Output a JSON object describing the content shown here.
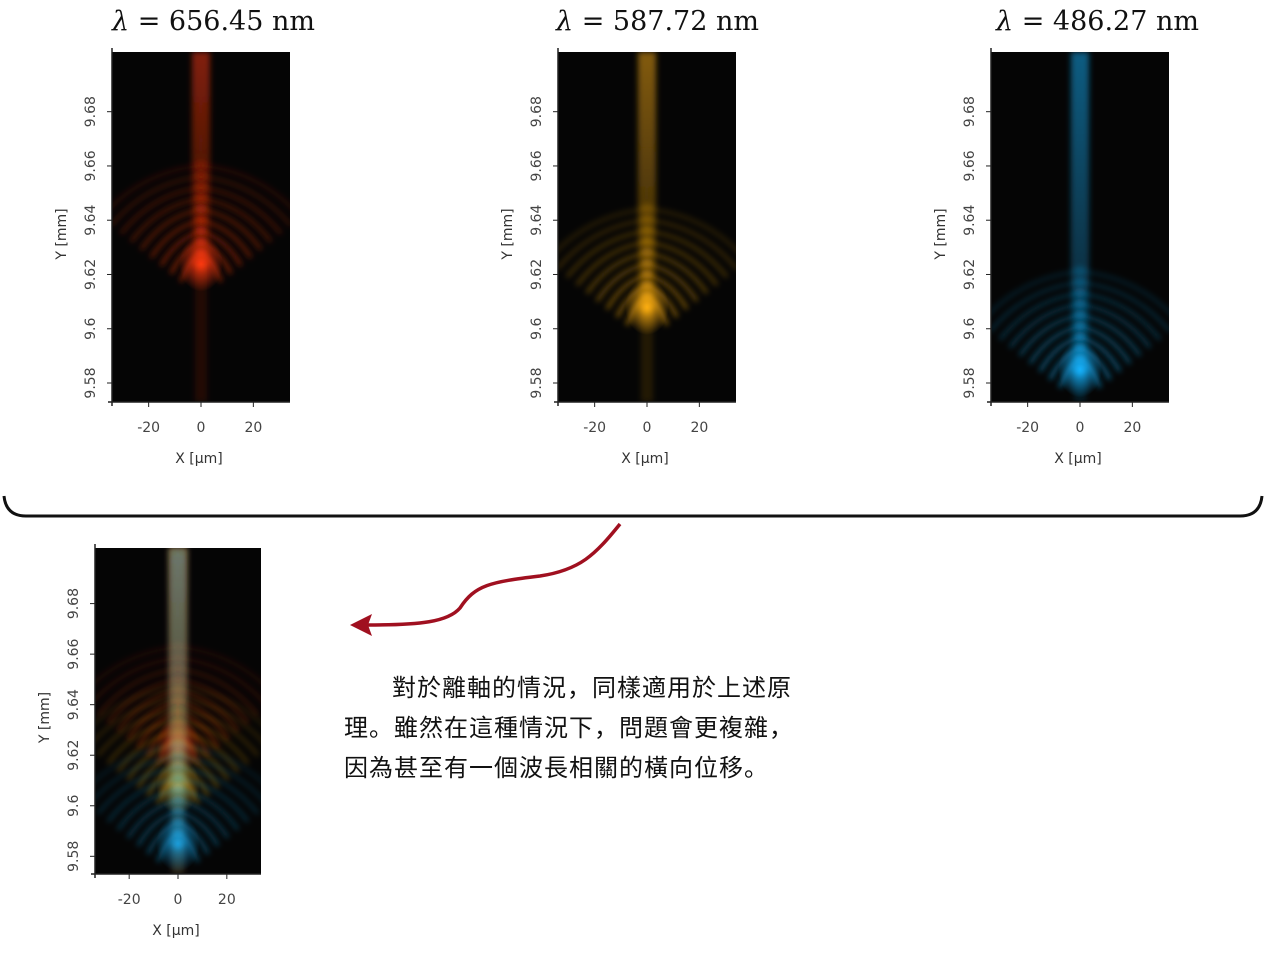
{
  "titles": [
    {
      "symbol": "λ",
      "eq": "= 656.45 nm"
    },
    {
      "symbol": "λ",
      "eq": "= 587.72 nm"
    },
    {
      "symbol": "λ",
      "eq": "= 486.27 nm"
    }
  ],
  "axes": {
    "xlabel": "X [μm]",
    "ylabel": "Y [mm]",
    "xticks": [
      "-20",
      "0",
      "20"
    ],
    "yticks": [
      "9.58",
      "9.6",
      "9.62",
      "9.64",
      "9.66",
      "9.68"
    ]
  },
  "caption": "對於離軸的情況，同樣適用於上述原理。雖然在這種情況下，問題會更複雜，因為甚至有一個波長相關的橫向位移。",
  "chart_data": [
    {
      "type": "heatmap",
      "title": "λ = 656.45 nm",
      "xlabel": "X [μm]",
      "ylabel": "Y [mm]",
      "xlim": [
        -34,
        34
      ],
      "ylim": [
        9.573,
        9.702
      ],
      "color": "#ff3a10",
      "focus_y": 9.624
    },
    {
      "type": "heatmap",
      "title": "λ = 587.72 nm",
      "xlabel": "X [μm]",
      "ylabel": "Y [mm]",
      "xlim": [
        -34,
        34
      ],
      "ylim": [
        9.573,
        9.702
      ],
      "color": "#ffb012",
      "focus_y": 9.608
    },
    {
      "type": "heatmap",
      "title": "λ = 486.27 nm",
      "xlabel": "X [μm]",
      "ylabel": "Y [mm]",
      "xlim": [
        -34,
        34
      ],
      "ylim": [
        9.573,
        9.702
      ],
      "color": "#18b4ff",
      "focus_y": 9.585
    },
    {
      "type": "heatmap",
      "title": "",
      "xlabel": "X [μm]",
      "ylabel": "Y [mm]",
      "xlim": [
        -34,
        34
      ],
      "ylim": [
        9.573,
        9.702
      ],
      "color": "composite",
      "focus_y": 9.608
    }
  ],
  "colors": {
    "brace": "#111111",
    "arrow": "#a01020"
  }
}
